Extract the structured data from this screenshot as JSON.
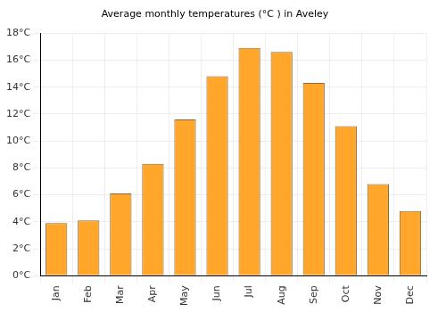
{
  "chart_data": {
    "type": "bar",
    "title": "Average monthly temperatures (°C ) in Aveley",
    "categories": [
      "Jan",
      "Feb",
      "Mar",
      "Apr",
      "May",
      "Jun",
      "Jul",
      "Aug",
      "Sep",
      "Oct",
      "Nov",
      "Dec"
    ],
    "values": [
      3.9,
      4.1,
      6.1,
      8.3,
      11.6,
      14.8,
      16.9,
      16.6,
      14.3,
      11.1,
      6.8,
      4.8
    ],
    "color": "#ffa62b",
    "ylim": [
      0,
      18
    ],
    "yticks": [
      {
        "value": 0,
        "label": "0°C"
      },
      {
        "value": 2,
        "label": "2°C"
      },
      {
        "value": 4,
        "label": "4°C"
      },
      {
        "value": 6,
        "label": "6°C"
      },
      {
        "value": 8,
        "label": "8°C"
      },
      {
        "value": 10,
        "label": "10°C"
      },
      {
        "value": 12,
        "label": "12°C"
      },
      {
        "value": 14,
        "label": "14°C"
      },
      {
        "value": 16,
        "label": "16°C"
      },
      {
        "value": 18,
        "label": "18°C"
      }
    ],
    "grid": true
  }
}
